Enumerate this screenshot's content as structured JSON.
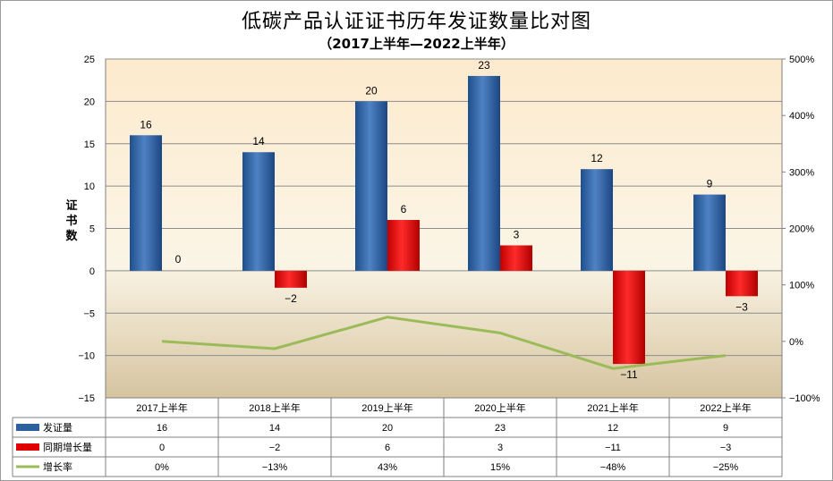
{
  "title": "低碳产品认证证书历年发证数量比对图",
  "subtitle": "（2017上半年—2022上半年）",
  "chart_data": {
    "type": "bar",
    "categories": [
      "2017上半年",
      "2018上半年",
      "2019上半年",
      "2020上半年",
      "2021上半年",
      "2022上半年"
    ],
    "ylabel": "证书数",
    "ylim": [
      -15,
      25
    ],
    "yticks": [
      "25",
      "20",
      "15",
      "10",
      "5",
      "0",
      "−5",
      "−10",
      "−15"
    ],
    "y2lim": [
      -100,
      500
    ],
    "y2ticks": [
      "500%",
      "400%",
      "300%",
      "200%",
      "100%",
      "0%",
      "−100%"
    ],
    "series": [
      {
        "name": "发证量",
        "type": "bar",
        "color": "#2e5f9e",
        "values": [
          16,
          14,
          20,
          23,
          12,
          9
        ],
        "labels": [
          "16",
          "14",
          "20",
          "23",
          "12",
          "9"
        ]
      },
      {
        "name": "同期增长量",
        "type": "bar",
        "color": "#e00000",
        "values": [
          0,
          -2,
          6,
          3,
          -11,
          -3
        ],
        "labels": [
          "0",
          "−2",
          "6",
          "3",
          "−11",
          "−3"
        ]
      },
      {
        "name": "增长率",
        "type": "line",
        "axis": "right",
        "color": "#9bbb59",
        "values": [
          0,
          -13,
          43,
          15,
          -48,
          -25
        ],
        "labels": [
          "0%",
          "−13%",
          "43%",
          "15%",
          "−48%",
          "−25%"
        ]
      }
    ],
    "grid": true,
    "legend": "data-table"
  }
}
